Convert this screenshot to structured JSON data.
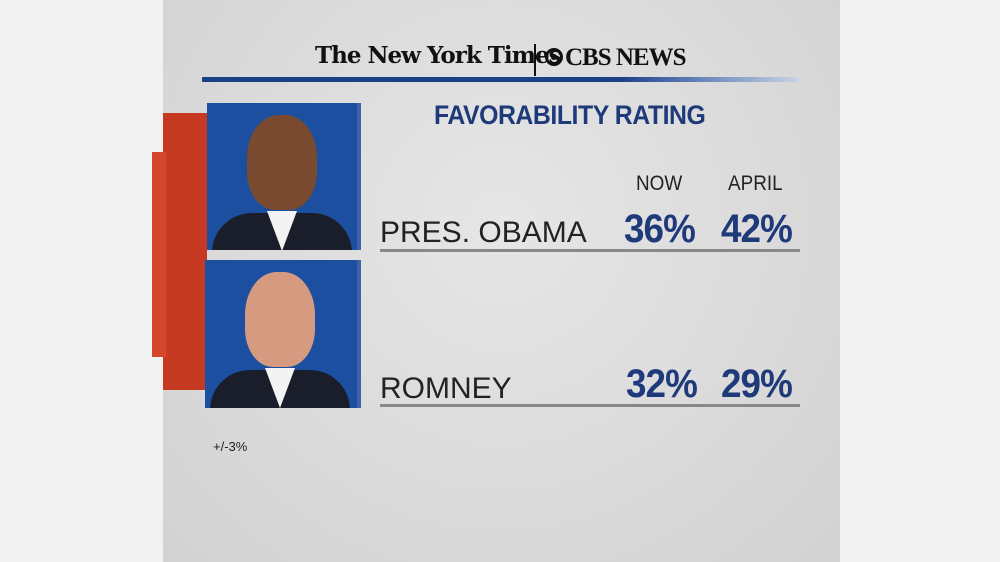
{
  "header": {
    "logo_nyt": "The New York Times",
    "logo_cbs": "CBS NEWS"
  },
  "chart_data": {
    "type": "table",
    "title": "FAVORABILITY RATING",
    "columns": [
      "NOW",
      "APRIL"
    ],
    "rows": [
      {
        "label": "PRES. OBAMA",
        "values": [
          "36%",
          "42%"
        ]
      },
      {
        "label": "ROMNEY",
        "values": [
          "32%",
          "29%"
        ]
      }
    ],
    "note": "+/-3%"
  },
  "colors": {
    "accent_blue": "#1f3a7a",
    "red": "#c63a22"
  }
}
